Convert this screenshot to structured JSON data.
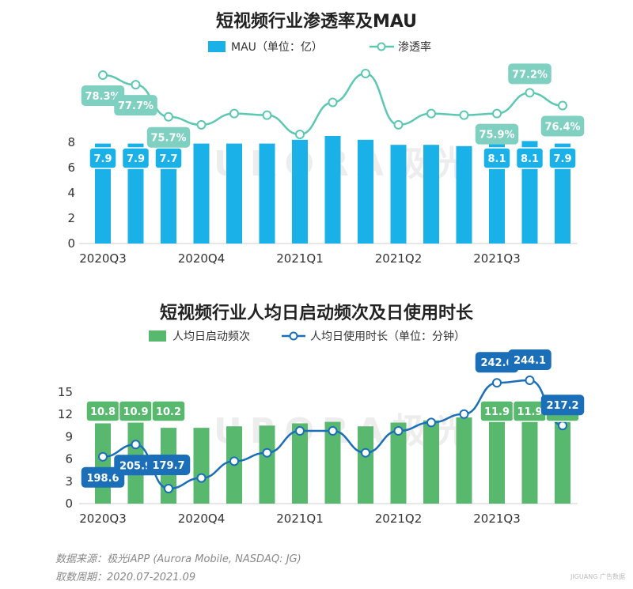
{
  "chart_data": [
    {
      "type": "bar+line",
      "title": "短视频行业渗透率及MAU",
      "legend": [
        "MAU（单位：亿）",
        "渗透率"
      ],
      "x_tick_labels": [
        "2020Q3",
        "2020Q4",
        "2021Q1",
        "2021Q2",
        "2021Q3"
      ],
      "y_ticks": [
        "0",
        "2",
        "4",
        "6",
        "8"
      ],
      "ylim": [
        0,
        8
      ],
      "series": [
        {
          "name": "MAU（单位：亿）",
          "kind": "bar",
          "color": "#1ab0e8",
          "values": [
            7.9,
            7.9,
            7.7,
            7.9,
            7.9,
            7.9,
            8.2,
            8.5,
            8.2,
            7.8,
            7.8,
            7.7,
            8.1,
            8.1,
            7.9
          ]
        },
        {
          "name": "渗透率",
          "kind": "line",
          "color": "#5cc7b2",
          "values": [
            78.3,
            77.7,
            75.7,
            75.2,
            75.9,
            75.8,
            74.6,
            76.6,
            78.4,
            75.2,
            75.9,
            75.8,
            75.9,
            77.2,
            76.4
          ]
        }
      ],
      "bar_data_labels": [
        {
          "index": 0,
          "text": "7.9"
        },
        {
          "index": 1,
          "text": "7.9"
        },
        {
          "index": 2,
          "text": "7.7"
        },
        {
          "index": 12,
          "text": "8.1"
        },
        {
          "index": 13,
          "text": "8.1"
        },
        {
          "index": 14,
          "text": "7.9"
        }
      ],
      "line_data_labels": [
        {
          "index": 0,
          "text": "78.3%"
        },
        {
          "index": 1,
          "text": "77.7%"
        },
        {
          "index": 2,
          "text": "75.7%"
        },
        {
          "index": 12,
          "text": "75.9%"
        },
        {
          "index": 13,
          "text": "77.2%"
        },
        {
          "index": 14,
          "text": "76.4%"
        }
      ]
    },
    {
      "type": "bar+line",
      "title": "短视频行业人均日启动频次及日使用时长",
      "legend": [
        "人均日启动频次",
        "人均日使用时长（单位：分钟）"
      ],
      "x_tick_labels": [
        "2020Q3",
        "2020Q4",
        "2021Q1",
        "2021Q2",
        "2021Q3"
      ],
      "y_ticks": [
        "0",
        "3",
        "6",
        "9",
        "12",
        "15"
      ],
      "ylim": [
        0,
        15
      ],
      "series": [
        {
          "name": "人均日启动频次",
          "kind": "bar",
          "color": "#58b86e",
          "values": [
            10.8,
            10.9,
            10.2,
            10.2,
            10.4,
            10.5,
            10.8,
            11.0,
            10.4,
            10.9,
            11.2,
            11.6,
            11.9,
            11.9,
            11.3
          ]
        },
        {
          "name": "人均日使用时长（单位：分钟）",
          "kind": "line",
          "color": "#1a6fb8",
          "values": [
            198.6,
            205.9,
            179.7,
            186.0,
            196.0,
            201.0,
            214.0,
            214.0,
            201.0,
            214.0,
            219.0,
            224.0,
            242.6,
            244.1,
            217.2
          ]
        }
      ],
      "bar_data_labels": [
        {
          "index": 0,
          "text": "10.8"
        },
        {
          "index": 1,
          "text": "10.9"
        },
        {
          "index": 2,
          "text": "10.2"
        },
        {
          "index": 12,
          "text": "11.9"
        },
        {
          "index": 13,
          "text": "11.9"
        },
        {
          "index": 14,
          "text": "11.3"
        }
      ],
      "line_data_labels": [
        {
          "index": 0,
          "text": "198.6"
        },
        {
          "index": 1,
          "text": "205.9"
        },
        {
          "index": 2,
          "text": "179.7"
        },
        {
          "index": 12,
          "text": "242.6"
        },
        {
          "index": 13,
          "text": "244.1"
        },
        {
          "index": 14,
          "text": "217.2"
        }
      ]
    }
  ],
  "watermark": "URORA极光",
  "footer": {
    "source": "数据来源：极光iAPP (Aurora Mobile, NASDAQ: JG)",
    "period": "取数周期：2020.07-2021.09"
  },
  "corner_mark": "JIGUANG 广告数据"
}
